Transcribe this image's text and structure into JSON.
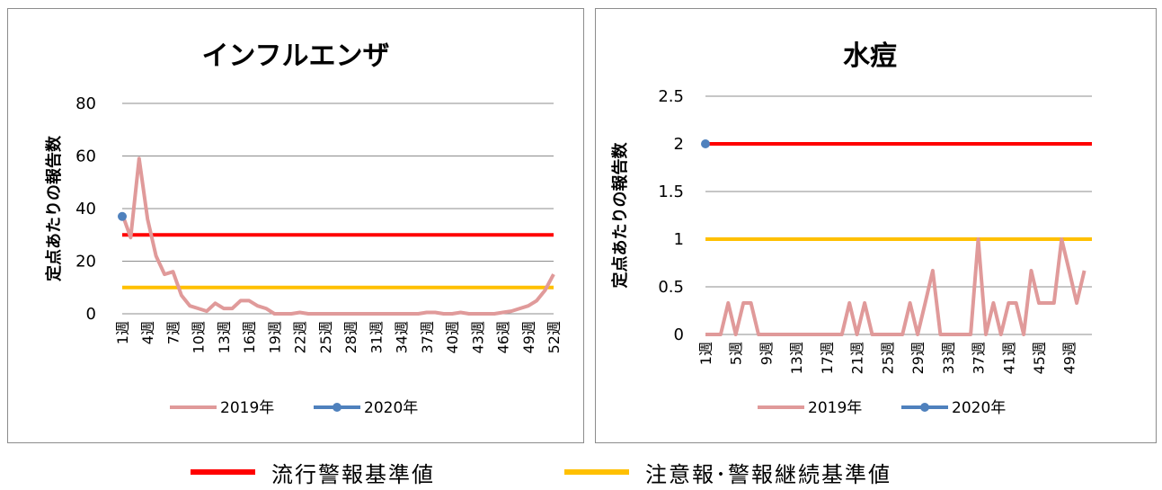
{
  "colors": {
    "series_2019": "#E09A9A",
    "series_2020": "#4F81BD",
    "alert_level": "#FF0000",
    "continuation_level": "#FFC000",
    "grid": "#8c8c8c"
  },
  "bottom_legend": {
    "alert": "流行警報基準値",
    "continuation": "注意報･警報継続基準値"
  },
  "chart_data": [
    {
      "type": "line",
      "title": "インフルエンザ",
      "ylabel": "定点あたりの報告数",
      "ylim": [
        0,
        80
      ],
      "yticks": [
        0,
        20,
        40,
        60,
        80
      ],
      "ytick_labels": [
        "0",
        "20",
        "40",
        "60",
        "80"
      ],
      "x_tick_labels": [
        "1週",
        "4週",
        "7週",
        "10週",
        "13週",
        "16週",
        "19週",
        "22週",
        "25週",
        "28週",
        "31週",
        "34週",
        "37週",
        "40週",
        "43週",
        "46週",
        "49週",
        "52週"
      ],
      "x_tick_weeks": [
        1,
        4,
        7,
        10,
        13,
        16,
        19,
        22,
        25,
        28,
        31,
        34,
        37,
        40,
        43,
        46,
        49,
        52
      ],
      "x_weeks": 52,
      "series": [
        {
          "name": "2019年",
          "values": [
            38,
            29,
            59,
            36,
            22,
            15,
            16,
            7,
            3,
            2,
            1,
            4,
            2,
            2,
            5,
            5,
            3,
            2,
            0,
            0,
            0,
            0.5,
            0,
            0,
            0,
            0,
            0,
            0,
            0,
            0,
            0,
            0,
            0,
            0,
            0,
            0,
            0.5,
            0.5,
            0,
            0,
            0.5,
            0,
            0,
            0,
            0,
            0.5,
            1,
            2,
            3,
            5,
            9,
            15
          ]
        },
        {
          "name": "2020年",
          "values": [
            37
          ]
        }
      ],
      "reference_lines": {
        "alert": 30,
        "continuation": 10
      },
      "legend": [
        "2019年",
        "2020年"
      ]
    },
    {
      "type": "line",
      "title": "水痘",
      "ylabel": "定点あたりの報告数",
      "ylim": [
        0,
        2.5
      ],
      "yticks": [
        0,
        0.5,
        1,
        1.5,
        2,
        2.5
      ],
      "ytick_labels": [
        "0",
        "0.5",
        "1",
        "1.5",
        "2",
        "2.5"
      ],
      "x_tick_labels": [
        "1週",
        "5週",
        "9週",
        "13週",
        "17週",
        "21週",
        "25週",
        "29週",
        "33週",
        "37週",
        "41週",
        "45週",
        "49週"
      ],
      "x_tick_weeks": [
        1,
        5,
        9,
        13,
        17,
        21,
        25,
        29,
        33,
        37,
        41,
        45,
        49
      ],
      "x_weeks": 52,
      "series": [
        {
          "name": "2019年",
          "values": [
            0,
            0,
            0,
            0.33,
            0,
            0.33,
            0.33,
            0,
            0,
            0,
            0,
            0,
            0,
            0,
            0,
            0,
            0,
            0,
            0,
            0.33,
            0,
            0.33,
            0,
            0,
            0,
            0,
            0,
            0.33,
            0,
            0.33,
            0.67,
            0,
            0,
            0,
            0,
            0,
            1,
            0,
            0.33,
            0,
            0.33,
            0.33,
            0,
            0.67,
            0.33,
            0.33,
            0.33,
            1,
            0.67,
            0.33,
            0.67
          ]
        },
        {
          "name": "2020年",
          "values": [
            2
          ]
        }
      ],
      "reference_lines": {
        "alert": 2,
        "continuation": 1
      },
      "legend": [
        "2019年",
        "2020年"
      ]
    }
  ]
}
